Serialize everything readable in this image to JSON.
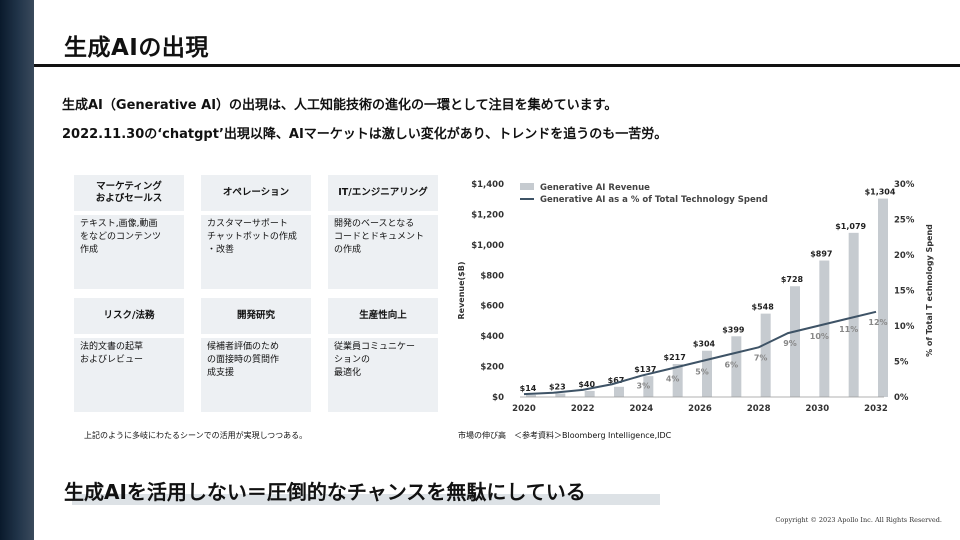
{
  "slide": {
    "title": "生成AIの出現",
    "intro_line1": "生成AI（Generative AI）の出現は、人工知能技術の進化の一環として注目を集めています。",
    "intro_line2": "2022.11.30の‘chatgpt’出現以降、AIマーケットは激しい変化があり、トレンドを追うのも一苦労。",
    "cards": [
      {
        "heading": "マーケティング\nおよびセールス",
        "body": "テキスト,画像,動画\nをなどのコンテンツ\n作成"
      },
      {
        "heading": "オペレーション",
        "body": "カスタマーサポート\nチャットボットの作成\n・改善"
      },
      {
        "heading": "IT/エンジニアリング",
        "body": "開発のベースとなる\nコードとドキュメント\nの作成"
      },
      {
        "heading": "リスク/法務",
        "body": "法的文書の起草\nおよびレビュー"
      },
      {
        "heading": "開発研究",
        "body": "候補者評価のため\nの面接時の質問作\n成支援"
      },
      {
        "heading": "生産性向上",
        "body": "従業員コミュニケー\nションの\n最適化"
      }
    ],
    "card_note": "上記のように多岐にわたるシーンでの活用が実現しつつある。",
    "source": "市場の伸び高　＜参考資料＞Bloomberg Intelligence,IDC",
    "slogan": "生成AIを活用しない＝圧倒的なチャンスを無駄にしている",
    "copyright": "Copyright © 2023 Apollo Inc. All Rights Reserved."
  },
  "chart_data": {
    "type": "bar",
    "years": [
      2020,
      2021,
      2022,
      2023,
      2024,
      2025,
      2026,
      2027,
      2028,
      2029,
      2030,
      2031,
      2032
    ],
    "x_tick_labels": [
      "2020",
      "2022",
      "2024",
      "2026",
      "2028",
      "2030",
      "2032"
    ],
    "series": [
      {
        "name": "Generative AI Revenue",
        "kind": "bar",
        "axis": "left",
        "values": [
          14,
          23,
          40,
          67,
          137,
          217,
          304,
          399,
          548,
          728,
          897,
          1079,
          1304
        ],
        "labels": [
          "$14",
          "$23",
          "$40",
          "$67",
          "$137",
          "$217",
          "$304",
          "$399",
          "$548",
          "$728",
          "$897",
          "$1,079",
          "$1,304"
        ]
      },
      {
        "name": "Generative AI as a % of Total Technology Spend",
        "kind": "line",
        "axis": "right",
        "values": [
          0.4,
          0.6,
          1,
          1.8,
          3,
          4,
          5,
          6,
          7,
          9,
          10,
          11,
          12
        ],
        "labels": [
          "",
          "",
          "",
          "",
          "3%",
          "4%",
          "5%",
          "6%",
          "7%",
          "9%",
          "10%",
          "11%",
          "12%"
        ]
      }
    ],
    "ylabel_left": "Revenue($B)",
    "ylabel_right": "% of Total T echnology Spend",
    "ylim_left": [
      0,
      1400
    ],
    "ylim_right": [
      0,
      30
    ],
    "yticks_left": [
      "$0",
      "$200",
      "$400",
      "$600",
      "$800",
      "$1,000",
      "$1,200",
      "$1,400"
    ],
    "yticks_right": [
      "0%",
      "5%",
      "10%",
      "15%",
      "20%",
      "25%",
      "30%"
    ],
    "legend_position": "top-left",
    "bar_color": "#c6cbd0",
    "line_color": "#3e5366"
  }
}
